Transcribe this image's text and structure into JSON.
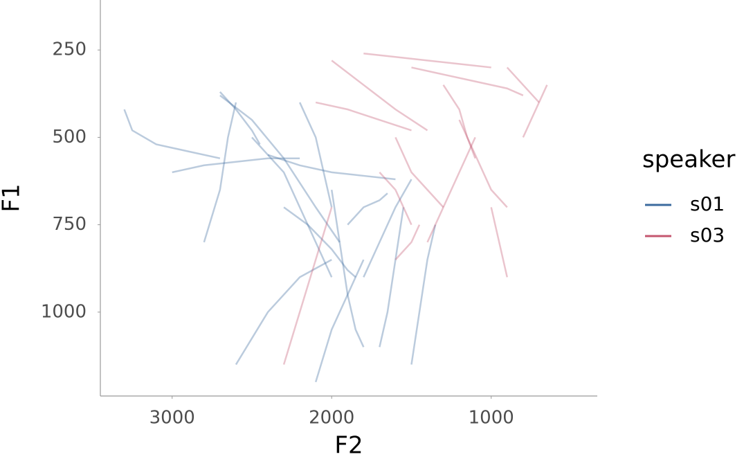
{
  "chart_data": {
    "type": "trajectory",
    "x_label": "F2",
    "y_label": "F1",
    "xlim": [
      3450,
      335
    ],
    "xticks": [
      3000,
      2000,
      1000
    ],
    "ylim": [
      1240,
      107
    ],
    "yticks": [
      250,
      500,
      750,
      1000
    ],
    "legend_title": "speaker",
    "legend_position": "right",
    "series": [
      {
        "name": "s01",
        "color": "#3b6a9e",
        "trajectories": [
          {
            "x": [
              3300,
              3250,
              3100,
              2900,
              2700
            ],
            "y": [
              420,
              480,
              520,
              540,
              560
            ]
          },
          {
            "x": [
              2700,
              2500,
              2300,
              2100,
              1950
            ],
            "y": [
              380,
              450,
              560,
              700,
              800
            ]
          },
          {
            "x": [
              2500,
              2300,
              2200,
              2100,
              2000
            ],
            "y": [
              500,
              600,
              700,
              800,
              900
            ]
          },
          {
            "x": [
              2000,
              1950,
              1900,
              1850,
              1800
            ],
            "y": [
              650,
              800,
              950,
              1050,
              1100
            ]
          },
          {
            "x": [
              2600,
              2400,
              2200,
              2000
            ],
            "y": [
              1150,
              1000,
              900,
              850
            ]
          },
          {
            "x": [
              1800,
              1700,
              1600,
              1500
            ],
            "y": [
              900,
              800,
              700,
              620
            ]
          },
          {
            "x": [
              2400,
              2200,
              2000,
              1800,
              1600
            ],
            "y": [
              550,
              580,
              600,
              610,
              620
            ]
          },
          {
            "x": [
              2800,
              2700,
              2650,
              2600
            ],
            "y": [
              800,
              650,
              500,
              400
            ]
          },
          {
            "x": [
              2100,
              2000,
              1900,
              1800
            ],
            "y": [
              1200,
              1050,
              950,
              850
            ]
          },
          {
            "x": [
              3000,
              2800,
              2600,
              2400,
              2200
            ],
            "y": [
              600,
              580,
              570,
              560,
              560
            ]
          },
          {
            "x": [
              1700,
              1650,
              1600,
              1550
            ],
            "y": [
              1100,
              1000,
              850,
              700
            ]
          },
          {
            "x": [
              2300,
              2150,
              2000,
              1900,
              1850
            ],
            "y": [
              700,
              750,
              820,
              880,
              900
            ]
          },
          {
            "x": [
              2700,
              2600,
              2500,
              2450
            ],
            "y": [
              370,
              420,
              480,
              520
            ]
          },
          {
            "x": [
              2200,
              2100,
              2050,
              2000
            ],
            "y": [
              400,
              500,
              600,
              700
            ]
          },
          {
            "x": [
              1500,
              1450,
              1400,
              1350
            ],
            "y": [
              1150,
              1000,
              850,
              750
            ]
          },
          {
            "x": [
              1900,
              1800,
              1700,
              1650
            ],
            "y": [
              750,
              700,
              680,
              660
            ]
          }
        ]
      },
      {
        "name": "s03",
        "color": "#c4566f",
        "trajectories": [
          {
            "x": [
              1500,
              1300,
              1100,
              900,
              800
            ],
            "y": [
              300,
              320,
              340,
              360,
              380
            ]
          },
          {
            "x": [
              2000,
              1800,
              1600,
              1400
            ],
            "y": [
              280,
              350,
              420,
              480
            ]
          },
          {
            "x": [
              1600,
              1500,
              1400,
              1300
            ],
            "y": [
              500,
              600,
              650,
              700
            ]
          },
          {
            "x": [
              1200,
              1100,
              1000,
              900
            ],
            "y": [
              450,
              550,
              650,
              700
            ]
          },
          {
            "x": [
              2300,
              2200,
              2100,
              2000
            ],
            "y": [
              1150,
              1000,
              850,
              700
            ]
          },
          {
            "x": [
              900,
              800,
              700
            ],
            "y": [
              300,
              350,
              400
            ]
          },
          {
            "x": [
              1800,
              1600,
              1400,
              1200,
              1000
            ],
            "y": [
              260,
              270,
              280,
              290,
              300
            ]
          },
          {
            "x": [
              1400,
              1300,
              1200,
              1100
            ],
            "y": [
              800,
              700,
              600,
              500
            ]
          },
          {
            "x": [
              1000,
              950,
              900
            ],
            "y": [
              700,
              800,
              900
            ]
          },
          {
            "x": [
              1700,
              1600,
              1550,
              1500
            ],
            "y": [
              600,
              650,
              700,
              750
            ]
          },
          {
            "x": [
              2100,
              1900,
              1700,
              1500
            ],
            "y": [
              400,
              420,
              450,
              480
            ]
          },
          {
            "x": [
              1300,
              1200,
              1150,
              1100
            ],
            "y": [
              350,
              420,
              500,
              560
            ]
          },
          {
            "x": [
              800,
              750,
              700,
              650
            ],
            "y": [
              500,
              450,
              400,
              350
            ]
          },
          {
            "x": [
              1600,
              1500,
              1450
            ],
            "y": [
              850,
              800,
              750
            ]
          }
        ]
      }
    ]
  }
}
